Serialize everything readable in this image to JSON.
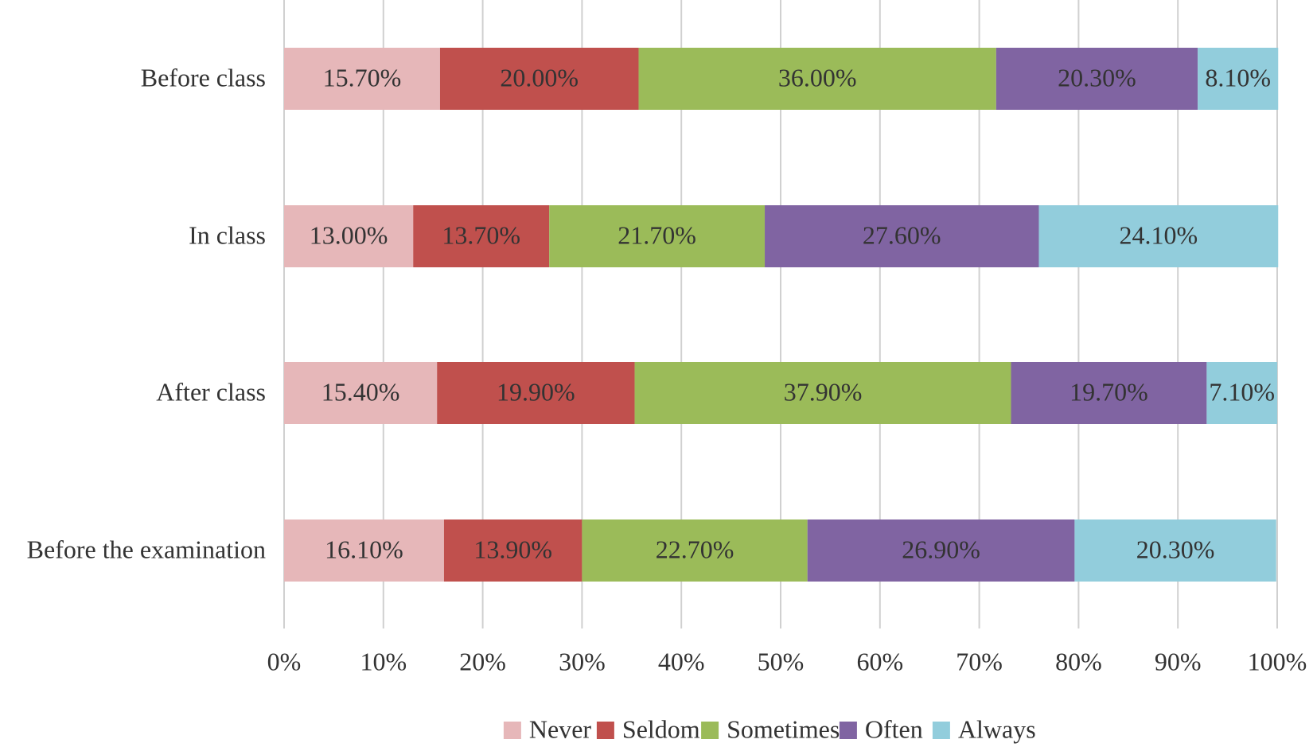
{
  "chart_data": {
    "type": "bar",
    "orientation": "horizontal",
    "stacked": "percent",
    "categories": [
      "Before class",
      "In class",
      "After class",
      "Before the examination"
    ],
    "series": [
      {
        "name": "Never",
        "color": "#e6b7b9",
        "values": [
          15.7,
          13.0,
          15.4,
          16.1
        ],
        "labels": [
          "15.70%",
          "13.00%",
          "15.40%",
          "16.10%"
        ]
      },
      {
        "name": "Seldom",
        "color": "#c0504d",
        "values": [
          20.0,
          13.7,
          19.9,
          13.9
        ],
        "labels": [
          "20.00%",
          "13.70%",
          "19.90%",
          "13.90%"
        ]
      },
      {
        "name": "Sometimes",
        "color": "#9bbb59",
        "values": [
          36.0,
          21.7,
          37.9,
          22.7
        ],
        "labels": [
          "36.00%",
          "21.70%",
          "37.90%",
          "22.70%"
        ]
      },
      {
        "name": "Often",
        "color": "#8064a2",
        "values": [
          20.3,
          27.6,
          19.7,
          26.9
        ],
        "labels": [
          "20.30%",
          "27.60%",
          "19.70%",
          "26.90%"
        ]
      },
      {
        "name": "Always",
        "color": "#92cddc",
        "values": [
          8.1,
          24.1,
          7.1,
          20.3
        ],
        "labels": [
          "8.10%",
          "24.10%",
          "7.10%",
          "20.30%"
        ]
      }
    ],
    "xlim": [
      0,
      100
    ],
    "x_ticks": [
      "0%",
      "10%",
      "20%",
      "30%",
      "40%",
      "50%",
      "60%",
      "70%",
      "80%",
      "90%",
      "100%"
    ],
    "grid": true,
    "legend_position": "bottom"
  }
}
